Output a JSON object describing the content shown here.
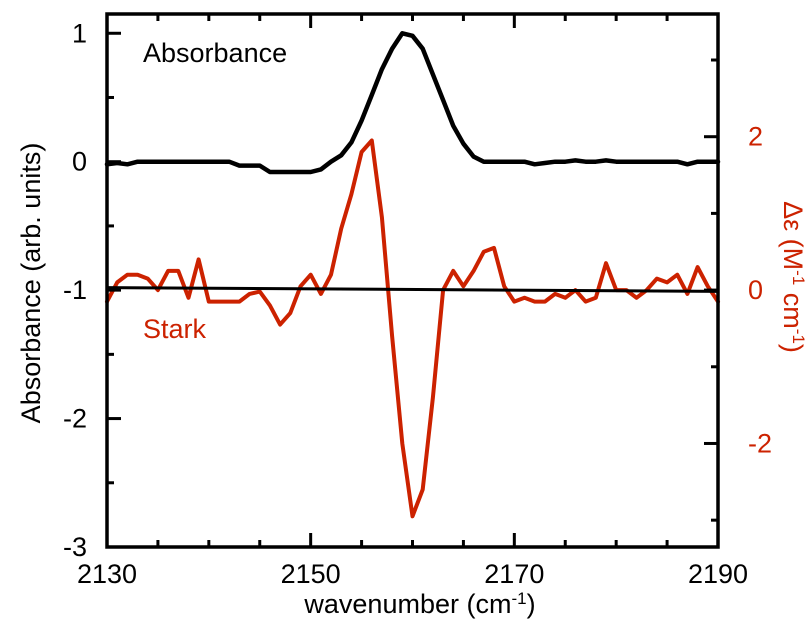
{
  "chart_data": {
    "type": "line",
    "title": "",
    "xlabel": "wavenumber (cm",
    "xlabel_sup": "-1",
    "xlabel_end": ")",
    "ylabel": "Absorbance (arb. units)",
    "y2label": "Δε (M",
    "y2label_sup1": "-1",
    "y2label_mid": " cm",
    "y2label_sup2": "-1",
    "y2label_end": ")",
    "xlim": [
      2130,
      2190
    ],
    "ylim": [
      -3,
      1.15
    ],
    "y2lim": [
      -3.35,
      3.6
    ],
    "xticks": [
      2130,
      2150,
      2170,
      2190
    ],
    "xtick_labels": [
      "2130",
      "2150",
      "2170",
      "2190"
    ],
    "yticks": [
      1,
      0,
      -1,
      -2,
      -3
    ],
    "ytick_labels": [
      "1",
      "0",
      "-1",
      "-2",
      "-3"
    ],
    "y2ticks": [
      2,
      0,
      -2
    ],
    "y2tick_labels": [
      "2",
      "0",
      "-2"
    ],
    "grid": false,
    "colors": {
      "absorbance": "#000000",
      "stark": "#cc2200",
      "baseline": "#000000",
      "axes": "#000000"
    },
    "annotations": [
      {
        "id": "absorbance",
        "text": "Absorbance",
        "color": "#000000"
      },
      {
        "id": "stark",
        "text": "Stark",
        "color": "#cc2200"
      }
    ],
    "series": [
      {
        "name": "Absorbance",
        "axis": "left",
        "x": [
          2130,
          2131,
          2132,
          2133,
          2134,
          2135,
          2136,
          2137,
          2138,
          2139,
          2140,
          2141,
          2142,
          2143,
          2144,
          2145,
          2146,
          2147,
          2148,
          2149,
          2150,
          2151,
          2152,
          2153,
          2154,
          2155,
          2156,
          2157,
          2158,
          2159,
          2160,
          2161,
          2162,
          2163,
          2164,
          2165,
          2166,
          2167,
          2168,
          2169,
          2170,
          2171,
          2172,
          2173,
          2174,
          2175,
          2176,
          2177,
          2178,
          2179,
          2180,
          2181,
          2182,
          2183,
          2184,
          2185,
          2186,
          2187,
          2188,
          2189,
          2190
        ],
        "values": [
          -0.02,
          -0.01,
          -0.02,
          0.0,
          0.0,
          0.0,
          0.0,
          0.0,
          0.0,
          0.0,
          0.0,
          0.0,
          0.0,
          -0.03,
          -0.03,
          -0.03,
          -0.08,
          -0.08,
          -0.08,
          -0.08,
          -0.08,
          -0.06,
          0.0,
          0.05,
          0.15,
          0.32,
          0.52,
          0.72,
          0.88,
          1.0,
          0.98,
          0.88,
          0.68,
          0.48,
          0.28,
          0.14,
          0.04,
          0.0,
          0.0,
          0.0,
          0.0,
          0.0,
          -0.02,
          -0.01,
          0.0,
          0.0,
          0.01,
          0.0,
          0.0,
          0.01,
          0.0,
          0.0,
          0.0,
          0.0,
          0.0,
          0.0,
          0.0,
          -0.02,
          0.0,
          0.0,
          0.0
        ]
      },
      {
        "name": "Stark",
        "axis": "right",
        "x": [
          2130,
          2131,
          2132,
          2133,
          2134,
          2135,
          2136,
          2137,
          2138,
          2139,
          2140,
          2141,
          2142,
          2143,
          2144,
          2145,
          2146,
          2147,
          2148,
          2149,
          2150,
          2151,
          2152,
          2153,
          2154,
          2155,
          2156,
          2157,
          2158,
          2159,
          2160,
          2161,
          2162,
          2163,
          2164,
          2165,
          2166,
          2167,
          2168,
          2169,
          2170,
          2171,
          2172,
          2173,
          2174,
          2175,
          2176,
          2177,
          2178,
          2179,
          2180,
          2181,
          2182,
          2183,
          2184,
          2185,
          2186,
          2187,
          2188,
          2189,
          2190
        ],
        "values": [
          -0.15,
          0.1,
          0.2,
          0.2,
          0.15,
          0.0,
          0.25,
          0.25,
          -0.1,
          0.4,
          -0.15,
          -0.15,
          -0.15,
          -0.15,
          -0.05,
          -0.02,
          -0.2,
          -0.45,
          -0.3,
          0.05,
          0.2,
          -0.05,
          0.2,
          0.8,
          1.25,
          1.8,
          1.95,
          0.95,
          -0.6,
          -2.0,
          -2.95,
          -2.6,
          -1.4,
          0.0,
          0.25,
          0.05,
          0.25,
          0.5,
          0.55,
          0.05,
          -0.15,
          -0.1,
          -0.15,
          -0.15,
          -0.05,
          -0.1,
          0.0,
          -0.15,
          -0.1,
          0.35,
          0.0,
          0.0,
          -0.1,
          0.0,
          0.15,
          0.1,
          0.2,
          -0.05,
          0.3,
          0.05,
          -0.15
        ]
      },
      {
        "name": "Baseline",
        "axis": "left",
        "x": [
          2130,
          2190
        ],
        "values": [
          -0.98,
          -1.01
        ]
      }
    ]
  }
}
